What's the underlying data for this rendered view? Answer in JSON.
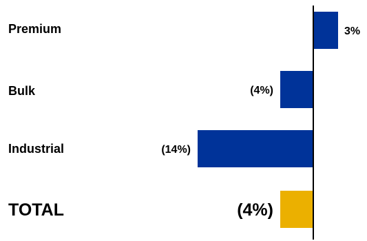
{
  "chart_data": {
    "type": "bar",
    "orientation": "horizontal",
    "categories": [
      "Premium",
      "Bulk",
      "Industrial",
      "TOTAL"
    ],
    "values": [
      3,
      -4,
      -14,
      -4
    ],
    "value_labels": [
      "3%",
      "(4%)",
      "(14%)",
      "(4%)"
    ],
    "unit": "%",
    "xlim": [
      -19,
      5
    ],
    "grid": false,
    "legend": "none",
    "colors": {
      "series": "#003399",
      "total": "#EBB000",
      "axis": "#000000",
      "text": "#000000"
    }
  }
}
